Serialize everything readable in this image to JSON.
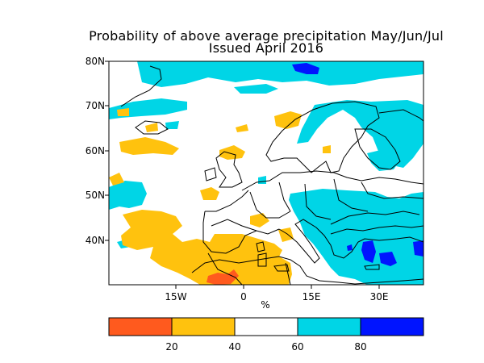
{
  "title": {
    "line1": "Probability of above average precipitation May/Jun/Jul",
    "line2": "Issued April 2016"
  },
  "map": {
    "lat_labels": [
      "80N",
      "70N",
      "60N",
      "50N",
      "40N"
    ],
    "lon_labels": [
      "15W",
      "0",
      "15E",
      "30E"
    ],
    "x_unit_label": "%",
    "colors": {
      "land_outline": "#000000",
      "cat_below_20": "#ff5a1e",
      "cat_20_40": "#ffc20e",
      "cat_60_80": "#00d5e6",
      "cat_above_80": "#0014ff"
    }
  },
  "colorbar": {
    "tick_labels": [
      "20",
      "40",
      "60",
      "80"
    ],
    "segments": [
      "#ff5a1e",
      "#ffc20e",
      "#ffffff",
      "#00d5e6",
      "#0014ff"
    ]
  }
}
